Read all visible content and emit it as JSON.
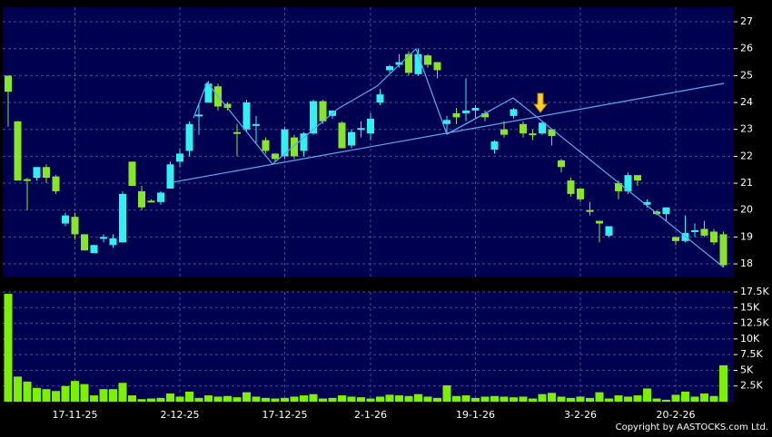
{
  "chart_data": [
    {
      "type": "candlestick",
      "open": [
        25.0,
        23.3,
        21.15,
        21.2,
        21.6,
        21.25,
        19.5,
        19.75,
        19.1,
        18.4,
        18.95,
        18.7,
        18.8,
        21.8,
        20.7,
        20.35,
        20.3,
        20.8,
        21.8,
        22.2,
        23.5,
        24.0,
        24.6,
        23.95,
        22.9,
        23.0,
        23.15,
        22.6,
        22.1,
        22.0,
        22.7,
        22.2,
        22.85,
        24.05,
        23.5,
        23.25,
        22.4,
        23.0,
        22.85,
        24.0,
        25.2,
        25.4,
        25.8,
        25.05,
        25.75,
        25.5,
        23.2,
        23.6,
        23.6,
        23.7,
        23.6,
        22.25,
        23.0,
        23.5,
        23.2,
        22.85,
        22.85,
        23.0,
        21.85,
        21.1,
        20.8,
        20.0,
        19.6,
        19.05,
        21.0,
        20.7,
        21.3,
        20.2,
        19.95,
        19.85,
        19.0,
        18.85,
        19.2,
        19.3,
        19.2,
        19.1
      ],
      "high": [
        25.0,
        23.3,
        21.2,
        21.6,
        21.7,
        21.3,
        19.9,
        19.9,
        19.1,
        18.7,
        19.1,
        19.1,
        20.7,
        21.8,
        20.9,
        20.4,
        20.7,
        21.8,
        22.3,
        23.3,
        24.0,
        24.8,
        24.7,
        24.0,
        23.2,
        24.1,
        23.5,
        22.7,
        22.1,
        23.1,
        22.8,
        22.9,
        24.1,
        24.1,
        23.7,
        23.3,
        23.0,
        23.3,
        23.6,
        24.5,
        25.4,
        25.8,
        25.9,
        26.0,
        25.8,
        25.5,
        23.5,
        23.8,
        24.9,
        23.9,
        23.7,
        22.6,
        23.3,
        23.8,
        23.3,
        23.0,
        23.3,
        23.0,
        21.9,
        21.2,
        20.8,
        20.3,
        19.6,
        19.4,
        21.1,
        21.4,
        21.3,
        20.4,
        20.0,
        20.1,
        19.0,
        19.8,
        19.5,
        19.6,
        19.3,
        19.2
      ],
      "low": [
        23.1,
        21.1,
        20.0,
        21.1,
        21.0,
        20.6,
        19.4,
        18.9,
        18.5,
        18.4,
        18.8,
        18.6,
        18.8,
        20.9,
        20.0,
        20.3,
        20.2,
        20.8,
        21.6,
        22.0,
        22.8,
        24.0,
        23.7,
        23.7,
        22.0,
        22.9,
        22.5,
        22.1,
        21.8,
        21.9,
        21.9,
        22.0,
        22.8,
        23.2,
        23.4,
        22.3,
        22.3,
        22.7,
        22.6,
        23.9,
        25.1,
        25.3,
        25.0,
        25.0,
        25.3,
        24.9,
        22.9,
        23.2,
        23.3,
        23.4,
        23.3,
        22.1,
        22.7,
        23.4,
        22.7,
        22.6,
        22.8,
        22.4,
        21.4,
        20.5,
        20.3,
        19.8,
        18.8,
        19.0,
        20.4,
        20.6,
        20.9,
        20.1,
        19.8,
        19.6,
        18.7,
        18.8,
        19.0,
        19.0,
        18.7,
        17.9
      ],
      "close": [
        24.4,
        21.1,
        21.1,
        21.6,
        21.2,
        20.7,
        19.8,
        19.1,
        18.5,
        18.7,
        19.0,
        18.95,
        20.6,
        20.9,
        20.1,
        20.3,
        20.65,
        21.7,
        22.1,
        23.2,
        23.55,
        24.7,
        23.85,
        23.8,
        22.85,
        24.0,
        23.2,
        22.2,
        21.9,
        23.0,
        22.0,
        22.85,
        24.05,
        23.3,
        23.7,
        22.3,
        22.9,
        23.05,
        23.4,
        24.3,
        25.35,
        25.5,
        25.1,
        25.8,
        25.4,
        25.2,
        23.35,
        23.45,
        23.7,
        23.8,
        23.45,
        22.55,
        22.8,
        23.75,
        22.85,
        22.8,
        23.25,
        22.75,
        21.6,
        20.6,
        20.4,
        19.95,
        19.5,
        19.4,
        20.7,
        21.3,
        21.1,
        20.3,
        19.85,
        20.1,
        18.85,
        19.15,
        19.25,
        19.05,
        18.8,
        17.95
      ],
      "up_color": "#33f0f0",
      "down_color": "#88e62a",
      "ylim": [
        17.53,
        27.54
      ],
      "yticks": [
        18,
        19,
        20,
        21,
        22,
        23,
        24,
        25,
        26,
        27
      ],
      "grid": true
    },
    {
      "type": "bar",
      "categories": [
        null,
        null,
        null,
        null,
        null,
        null,
        null,
        "17-11-25",
        null,
        null,
        null,
        null,
        null,
        null,
        null,
        null,
        null,
        null,
        "2-12-25",
        null,
        null,
        null,
        null,
        null,
        null,
        null,
        null,
        null,
        null,
        "17-12-25",
        null,
        null,
        null,
        null,
        null,
        null,
        null,
        null,
        "2-1-26",
        null,
        null,
        null,
        null,
        null,
        null,
        null,
        null,
        null,
        null,
        "19-1-26",
        null,
        null,
        null,
        null,
        null,
        null,
        null,
        null,
        null,
        null,
        "3-2-26",
        null,
        null,
        null,
        null,
        null,
        null,
        null,
        null,
        null,
        "20-2-26",
        null,
        null,
        null,
        null,
        null
      ],
      "values": [
        17200,
        4000,
        3200,
        2200,
        2000,
        1700,
        2500,
        3300,
        2800,
        1000,
        2000,
        2000,
        3000,
        1000,
        400,
        500,
        600,
        1300,
        800,
        1600,
        600,
        1000,
        800,
        900,
        700,
        1500,
        800,
        600,
        500,
        600,
        800,
        1000,
        1200,
        500,
        600,
        1000,
        800,
        700,
        500,
        800,
        1100,
        1000,
        900,
        1200,
        800,
        600,
        2600,
        900,
        1000,
        600,
        800,
        900,
        800,
        700,
        800,
        500,
        1200,
        1400,
        800,
        600,
        800,
        600,
        1500,
        500,
        1000,
        800,
        1000,
        2100,
        500,
        300,
        1100,
        1600,
        800,
        1300,
        900,
        5800
      ],
      "color": "#7cf000",
      "ylim": [
        0,
        17500
      ],
      "yticks": [
        {
          "value": 2500,
          "label": "2.5K"
        },
        {
          "value": 5000,
          "label": "5K"
        },
        {
          "value": 7500,
          "label": "7.5K"
        },
        {
          "value": 10000,
          "label": "10K"
        },
        {
          "value": 12500,
          "label": "12.5K"
        },
        {
          "value": 15000,
          "label": "15K"
        },
        {
          "value": 17500,
          "label": "17.5K"
        }
      ],
      "grid": true
    }
  ],
  "copyright": "Copyright by AASTOCKS.com Ltd."
}
